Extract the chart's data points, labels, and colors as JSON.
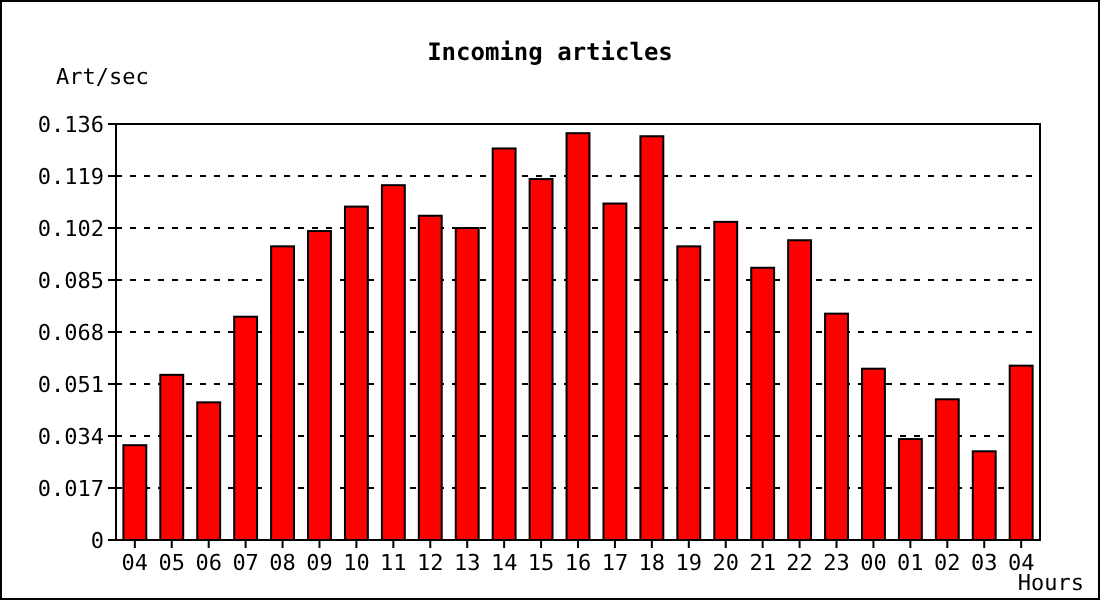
{
  "chart_data": {
    "type": "bar",
    "title": "Incoming articles",
    "ylabel": "Art/sec",
    "xlabel": "Hours",
    "categories": [
      "04",
      "05",
      "06",
      "07",
      "08",
      "09",
      "10",
      "11",
      "12",
      "13",
      "14",
      "15",
      "16",
      "17",
      "18",
      "19",
      "20",
      "21",
      "22",
      "23",
      "00",
      "01",
      "02",
      "03",
      "04"
    ],
    "values": [
      0.031,
      0.054,
      0.045,
      0.073,
      0.096,
      0.101,
      0.109,
      0.116,
      0.106,
      0.102,
      0.128,
      0.118,
      0.133,
      0.11,
      0.132,
      0.096,
      0.104,
      0.089,
      0.098,
      0.074,
      0.056,
      0.033,
      0.046,
      0.029,
      0.057
    ],
    "color": "#ff0000",
    "ylim": [
      0,
      0.136
    ],
    "yticks": [
      {
        "value": 0,
        "label": "0"
      },
      {
        "value": 0.017,
        "label": "0.017"
      },
      {
        "value": 0.034,
        "label": "0.034"
      },
      {
        "value": 0.051,
        "label": "0.051"
      },
      {
        "value": 0.068,
        "label": "0.068"
      },
      {
        "value": 0.085,
        "label": "0.085"
      },
      {
        "value": 0.102,
        "label": "0.102"
      },
      {
        "value": 0.119,
        "label": "0.119"
      },
      {
        "value": 0.136,
        "label": "0.136"
      }
    ],
    "grid": "y"
  }
}
